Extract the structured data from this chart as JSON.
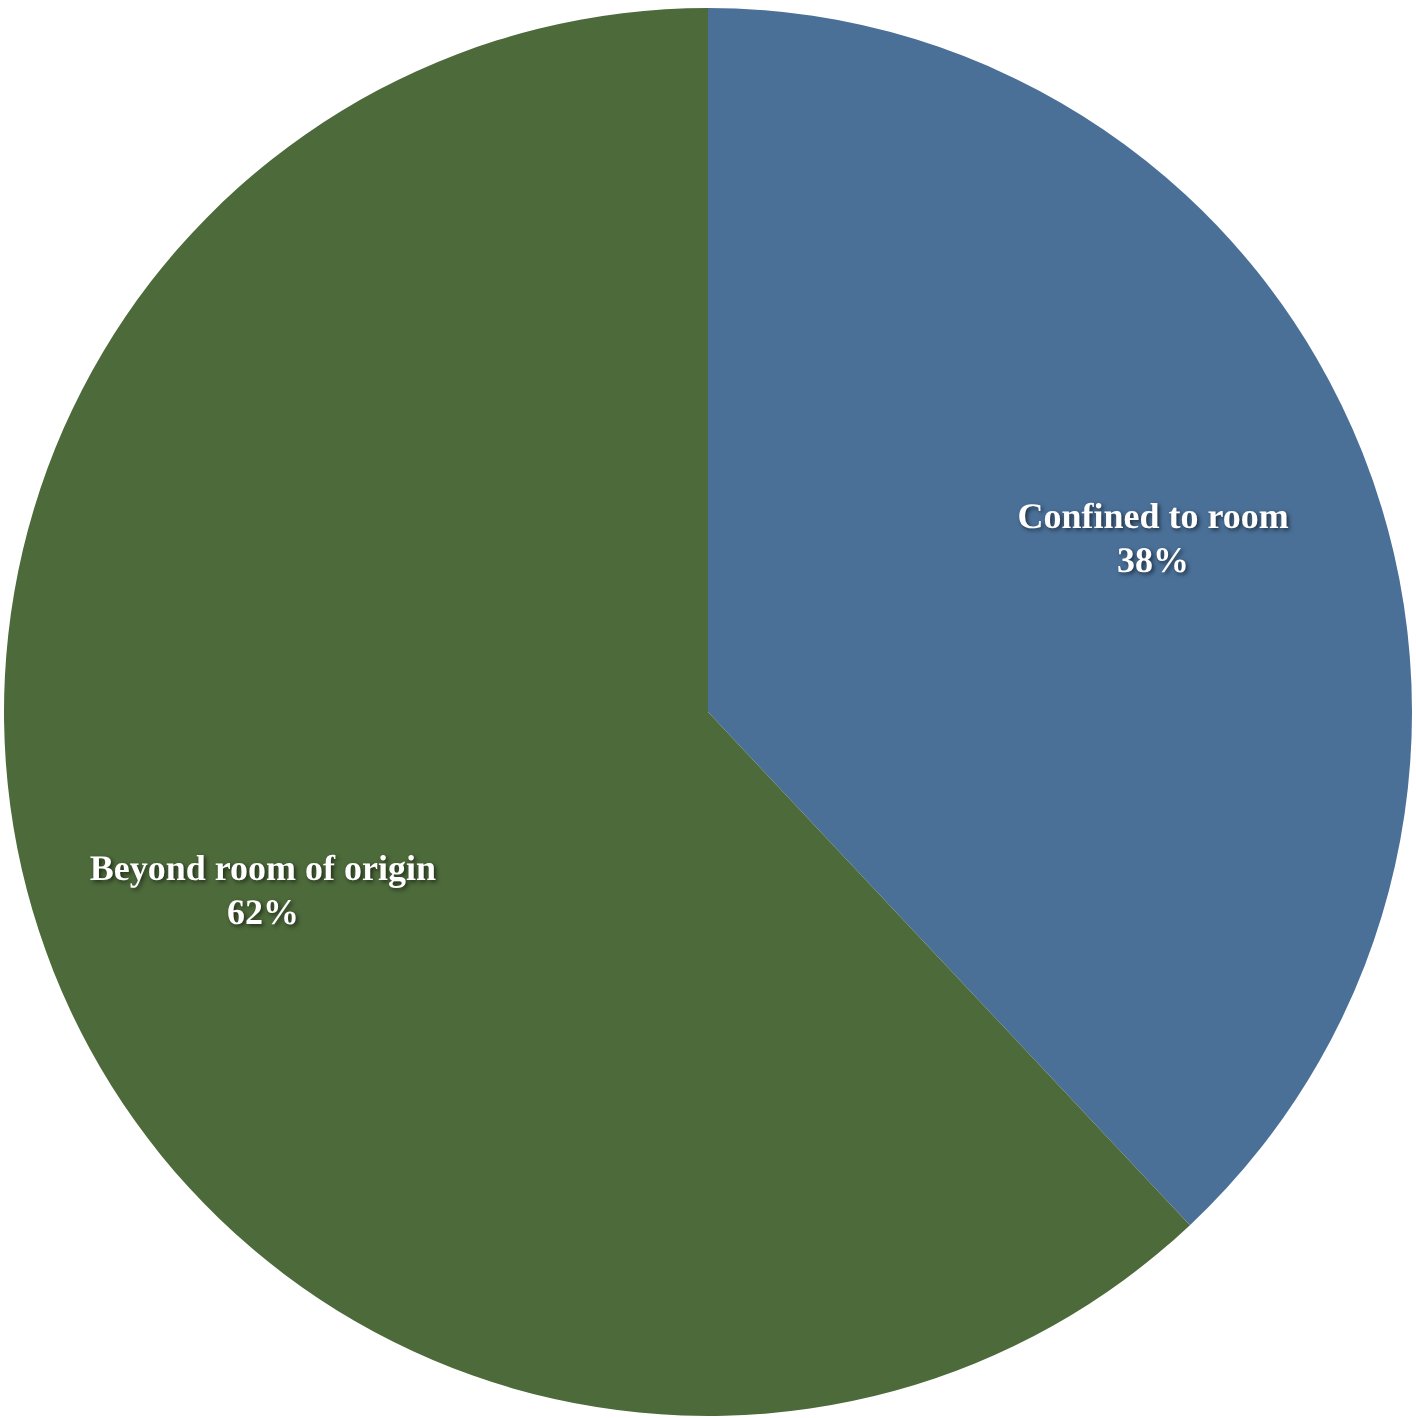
{
  "chart_data": {
    "type": "pie",
    "categories": [
      "Confined to room",
      "Beyond room of origin"
    ],
    "values": [
      38,
      62
    ],
    "colors": [
      "#4a7098",
      "#4d6a3b"
    ],
    "value_labels": [
      "38%",
      "62%"
    ]
  }
}
